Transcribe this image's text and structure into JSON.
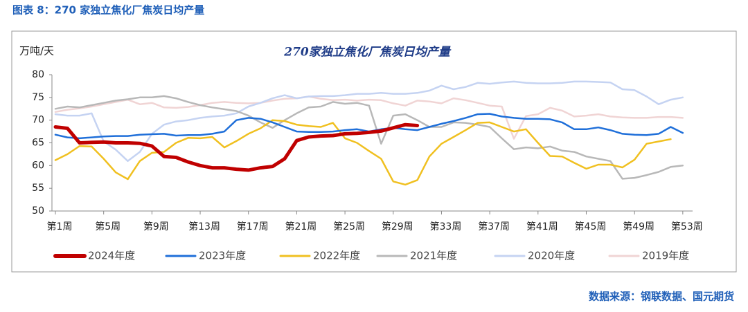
{
  "header": "图表 8：270 家独立焦化厂焦炭日均产量",
  "source": "数据来源：钢联数据、国元期货",
  "chart_data": {
    "type": "line",
    "title": "270家独立焦化厂焦炭日均产量",
    "y_label": "万吨/天",
    "categories": [
      "第1周",
      null,
      null,
      null,
      "第5周",
      null,
      null,
      null,
      "第9周",
      null,
      null,
      null,
      "第13周",
      null,
      null,
      null,
      "第17周",
      null,
      null,
      null,
      "第21周",
      null,
      null,
      null,
      "第25周",
      null,
      null,
      null,
      "第29周",
      null,
      null,
      null,
      "第33周",
      null,
      null,
      null,
      "第37周",
      null,
      null,
      null,
      "第41周",
      null,
      null,
      null,
      "第45周",
      null,
      null,
      null,
      "第49周",
      null,
      null,
      null,
      "第53周"
    ],
    "ylim": [
      50,
      80
    ],
    "yticks": [
      50,
      55,
      60,
      65,
      70,
      75,
      80
    ],
    "grid": false,
    "legend": "bottom",
    "series": [
      {
        "name": "2024年度",
        "color": "#c00000",
        "values": [
          68.5,
          68.2,
          65,
          65.1,
          65.2,
          65,
          65,
          64.9,
          64.3,
          62,
          61.8,
          60.8,
          60,
          59.5,
          59.5,
          59.2,
          59,
          59.5,
          59.8,
          61.5,
          65.5,
          66.3,
          66.5,
          66.6,
          67,
          67.1,
          67.3,
          67.6,
          68.3,
          69,
          68.8,
          null,
          null,
          null,
          null,
          null,
          null,
          null,
          null,
          null,
          null,
          null,
          null,
          null,
          null,
          null,
          null,
          null,
          null,
          null,
          null,
          null,
          null
        ]
      },
      {
        "name": "2023年度",
        "color": "#1f6fd9",
        "values": [
          66.8,
          66.2,
          66,
          66.2,
          66.4,
          66.5,
          66.5,
          66.8,
          66.9,
          67,
          66.6,
          66.7,
          66.7,
          67,
          67.5,
          70,
          70.5,
          70.3,
          69.5,
          68.5,
          67.5,
          67.4,
          67.4,
          67.5,
          67.8,
          68,
          67.5,
          68,
          68.3,
          68,
          67.8,
          68.5,
          69.2,
          69.8,
          70.5,
          71.3,
          71.4,
          70.8,
          70.5,
          70.3,
          70.3,
          70.2,
          69.5,
          68,
          68,
          68.4,
          67.8,
          67,
          66.8,
          66.7,
          67,
          68.5,
          67.2
        ]
      },
      {
        "name": "2022年度",
        "color": "#f0c020",
        "values": [
          61.2,
          62.5,
          64.3,
          64.2,
          61.5,
          58.5,
          57,
          61,
          62.8,
          63,
          65,
          66.1,
          66,
          66.3,
          64,
          65.4,
          67,
          68.2,
          70,
          69.8,
          69,
          68.7,
          68.5,
          69.4,
          66,
          65,
          63.2,
          61.5,
          56.5,
          55.8,
          56.8,
          62,
          64.8,
          66.3,
          67.8,
          69.4,
          69.5,
          68.5,
          67.5,
          68,
          65,
          62.1,
          62,
          60.6,
          59.3,
          60.2,
          60.2,
          59.6,
          61.3,
          64.8,
          65.3,
          65.8,
          null
        ]
      },
      {
        "name": "2021年度",
        "color": "#b8b8b8",
        "values": [
          72.5,
          73,
          72.8,
          73.3,
          73.8,
          74.3,
          74.6,
          75,
          75,
          75.3,
          74.8,
          74,
          73.3,
          72.8,
          72.4,
          72,
          71,
          69.5,
          68.3,
          70,
          71.5,
          72.8,
          73,
          74,
          73.6,
          73.8,
          73.2,
          64.8,
          71,
          71.3,
          70,
          68.5,
          68.5,
          69.5,
          69.4,
          69,
          68.5,
          66,
          63.6,
          64,
          63.8,
          64.2,
          63.3,
          63,
          62,
          61.5,
          61,
          57.1,
          57.3,
          57.9,
          58.6,
          59.7,
          60
        ]
      },
      {
        "name": "2020年度",
        "color": "#c5d3f2",
        "values": [
          71.3,
          71,
          71,
          71.5,
          65.3,
          63.5,
          61,
          63,
          67,
          69,
          69.7,
          70,
          70.5,
          70.8,
          71,
          71.5,
          73,
          73.8,
          74.8,
          75.5,
          74.8,
          75.2,
          75.3,
          75.3,
          75.5,
          75.8,
          75.8,
          76,
          75.8,
          75.8,
          76,
          76.5,
          77.6,
          76.8,
          77.3,
          78.2,
          78,
          78.3,
          78.5,
          78.2,
          78.1,
          78.1,
          78.2,
          78.5,
          78.5,
          78.4,
          78.3,
          76.8,
          76.6,
          75.2,
          73.5,
          74.5,
          75
        ]
      },
      {
        "name": "2019年度",
        "color": "#f0d4d4",
        "values": [
          71.8,
          72.3,
          72.6,
          73,
          73.5,
          74,
          74.5,
          73.5,
          73.8,
          72.8,
          72.7,
          72.9,
          73.3,
          73.8,
          74,
          73.8,
          73.7,
          73.8,
          74.3,
          74.7,
          74.8,
          75.2,
          74.7,
          74.4,
          74.5,
          74.3,
          74.5,
          74.4,
          73.7,
          73.2,
          74.3,
          74.1,
          73.7,
          74.8,
          74.4,
          73.8,
          73.2,
          73,
          65.9,
          70.9,
          71.3,
          72.7,
          72.1,
          70.8,
          71,
          71.3,
          70.8,
          70.6,
          70.5,
          70.5,
          70.7,
          70.7,
          70.5
        ]
      }
    ]
  }
}
